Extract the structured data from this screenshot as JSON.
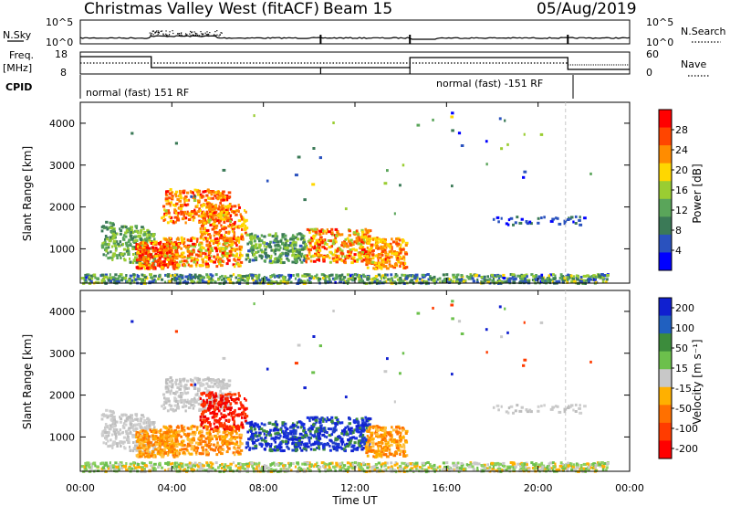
{
  "header": {
    "title": "Christmas Valley West (fitACF)",
    "beam": "Beam 15",
    "date": "05/Aug/2019"
  },
  "top_panels": {
    "n_sky_label": "N.Sky",
    "n_search_label": "N.Search",
    "noise_ticks": [
      "10^5",
      "10^0"
    ],
    "freq_label_1": "Freq.",
    "freq_label_2": "[MHz]",
    "freq_ticks": [
      "18",
      "8"
    ],
    "nave_label": "Nave",
    "nave_ticks": [
      "60",
      "0"
    ],
    "cpid_label": "CPID",
    "cpid_segments": [
      "normal (fast) 151 RF",
      "normal (fast) -151 RF"
    ]
  },
  "colors": {
    "power_scale": [
      "#0000ff",
      "#2a52be",
      "#3b7a57",
      "#5aa55a",
      "#9acd32",
      "#ffd700",
      "#ff8c00",
      "#ff4500",
      "#ff0000"
    ],
    "velocity_scale": [
      "#1020d0",
      "#2060c0",
      "#3c8c3c",
      "#6cc04c",
      "#c8c8c8",
      "#ffb000",
      "#ff7000",
      "#ff3c00",
      "#ff0000"
    ],
    "ground_scatter": "#9a9a9a"
  },
  "chart_data": [
    {
      "type": "heatmap",
      "title": "",
      "ylabel": "Slant Range [km]",
      "xlabel": "",
      "x_ticks": [
        "00:00",
        "04:00",
        "08:00",
        "12:00",
        "16:00",
        "20:00",
        "00:00"
      ],
      "y_ticks": [
        1000,
        2000,
        3000,
        4000
      ],
      "ylim": [
        180,
        4500
      ],
      "xlim_hours": [
        0,
        24
      ],
      "colorbar": {
        "label": "Power [dB]",
        "ticks": [
          4,
          8,
          12,
          16,
          20,
          24,
          28
        ],
        "range": [
          0,
          30
        ]
      }
    },
    {
      "type": "heatmap",
      "title": "",
      "ylabel": "Slant Range [km]",
      "xlabel": "Time UT",
      "x_ticks": [
        "00:00",
        "04:00",
        "08:00",
        "12:00",
        "16:00",
        "20:00",
        "00:00"
      ],
      "y_ticks": [
        1000,
        2000,
        3000,
        4000
      ],
      "ylim": [
        180,
        4500
      ],
      "xlim_hours": [
        0,
        24
      ],
      "colorbar": {
        "label": "Velocity [m s⁻¹]",
        "ticks": [
          "200",
          "100",
          "50",
          "15",
          "-15",
          "-50",
          "-100",
          "-200"
        ],
        "range": [
          -250,
          250
        ]
      }
    }
  ]
}
